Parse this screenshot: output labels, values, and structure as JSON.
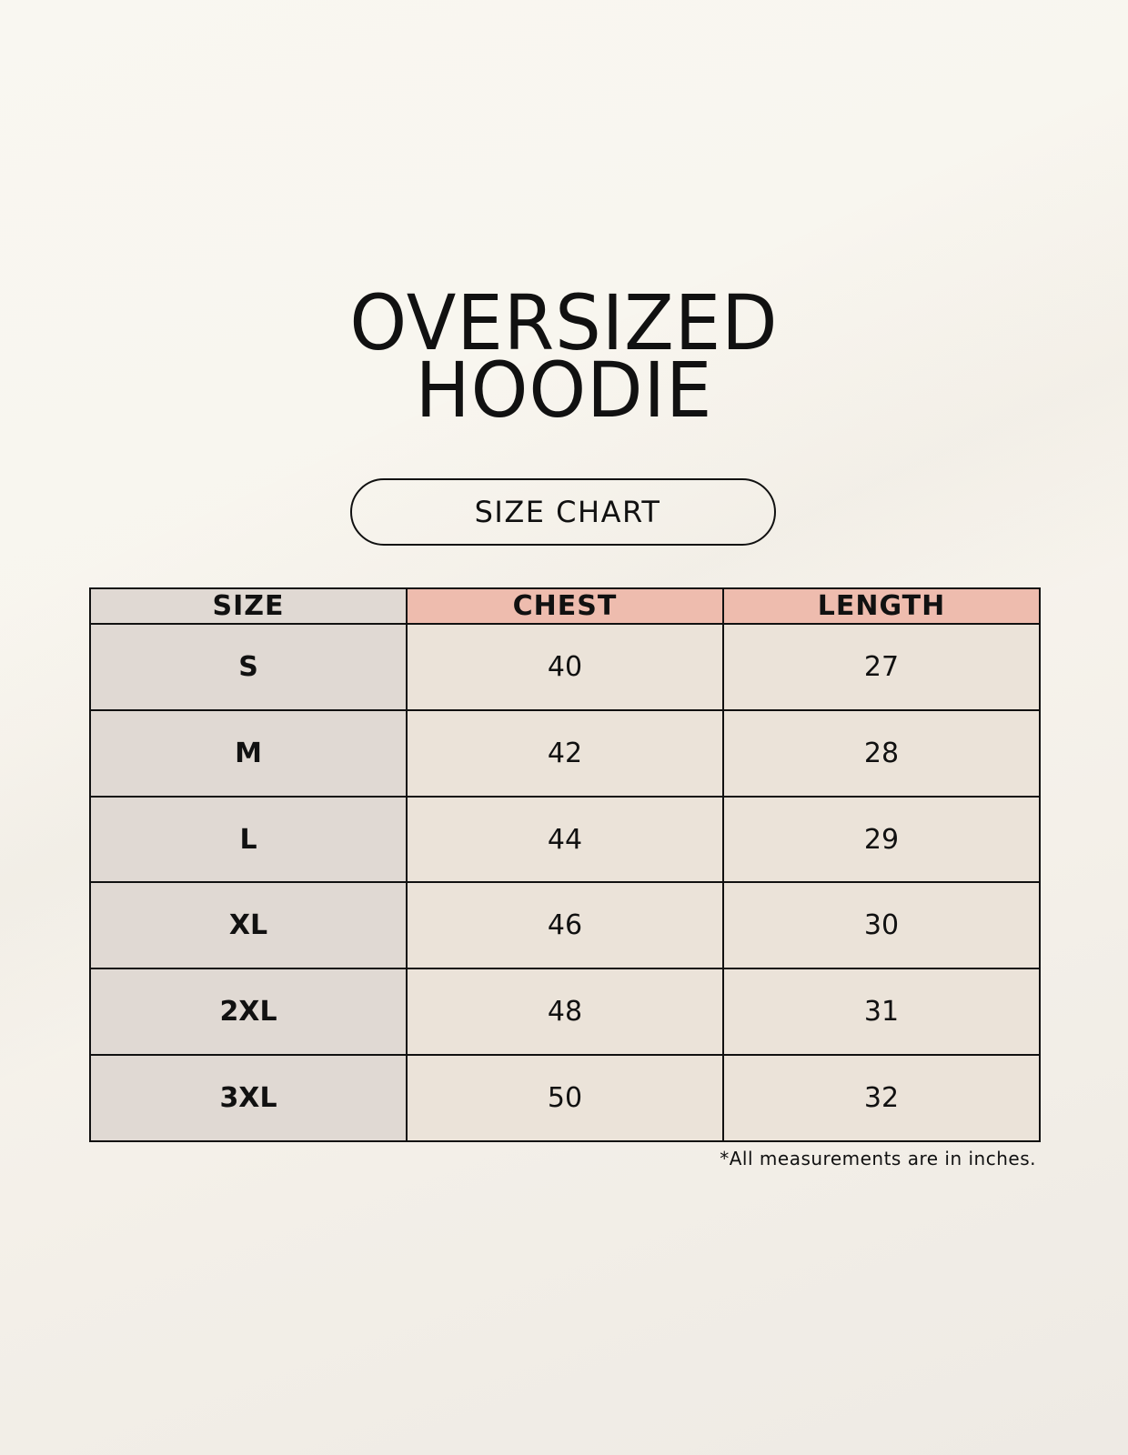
{
  "title": {
    "line1": "OVERSIZED",
    "line2": "HOODIE"
  },
  "subtitle": "SIZE CHART",
  "table": {
    "headers": [
      "SIZE",
      "CHEST",
      "LENGTH"
    ],
    "rows": [
      [
        "S",
        "40",
        "27"
      ],
      [
        "M",
        "42",
        "28"
      ],
      [
        "L",
        "44",
        "29"
      ],
      [
        "XL",
        "46",
        "30"
      ],
      [
        "2XL",
        "48",
        "31"
      ],
      [
        "3XL",
        "50",
        "32"
      ]
    ]
  },
  "note": "*All measurements are in inches.",
  "colors": {
    "size_column": "#e0d9d3",
    "header_accent": "#eebcae",
    "cell": "#ebe3d9"
  }
}
